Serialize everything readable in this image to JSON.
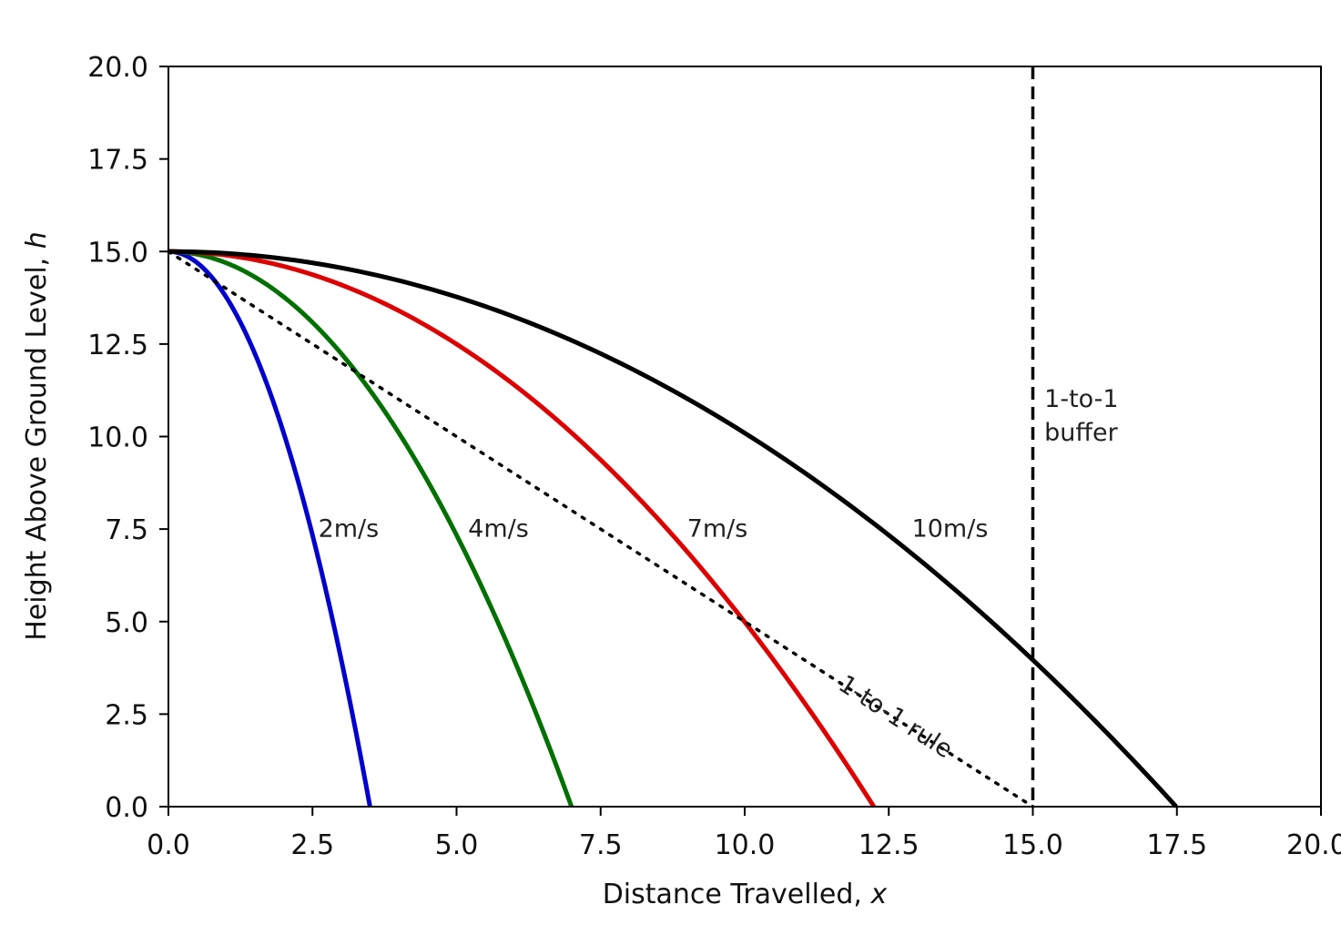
{
  "chart_data": {
    "type": "line",
    "title": "",
    "xlabel": {
      "prefix": "Distance Travelled, ",
      "var": "x"
    },
    "ylabel": {
      "prefix": "Height Above Ground Level, ",
      "var": "h"
    },
    "xlim": [
      0,
      20
    ],
    "ylim": [
      0,
      20
    ],
    "x_ticks": [
      "0.0",
      "2.5",
      "5.0",
      "7.5",
      "10.0",
      "12.5",
      "15.0",
      "17.5",
      "20.0"
    ],
    "y_ticks": [
      "0.0",
      "2.5",
      "5.0",
      "7.5",
      "10.0",
      "12.5",
      "15.0",
      "17.5",
      "20.0"
    ],
    "grid": false,
    "launch_height": 15.0,
    "series": [
      {
        "name": "2m/s",
        "speed": 2,
        "color": "#0000cc",
        "label_at": [
          2.6,
          7.3
        ]
      },
      {
        "name": "4m/s",
        "speed": 4,
        "color": "#007000",
        "label_at": [
          5.2,
          7.3
        ]
      },
      {
        "name": "7m/s",
        "speed": 7,
        "color": "#dd0000",
        "label_at": [
          9.0,
          7.3
        ]
      },
      {
        "name": "10m/s",
        "speed": 10,
        "color": "#000000",
        "label_at": [
          12.9,
          7.3
        ]
      }
    ],
    "reference_lines": [
      {
        "name": "1-to-1 rule",
        "style": "dotted",
        "points": [
          [
            0,
            15
          ],
          [
            15,
            0
          ]
        ],
        "label": "1-to-1 rule",
        "label_at": [
          11.6,
          3.2
        ]
      },
      {
        "name": "1-to-1 buffer",
        "style": "dashed",
        "x": 15,
        "label_lines": [
          "1-to-1",
          "buffer"
        ],
        "label_at": [
          15.2,
          10.8
        ]
      }
    ]
  }
}
